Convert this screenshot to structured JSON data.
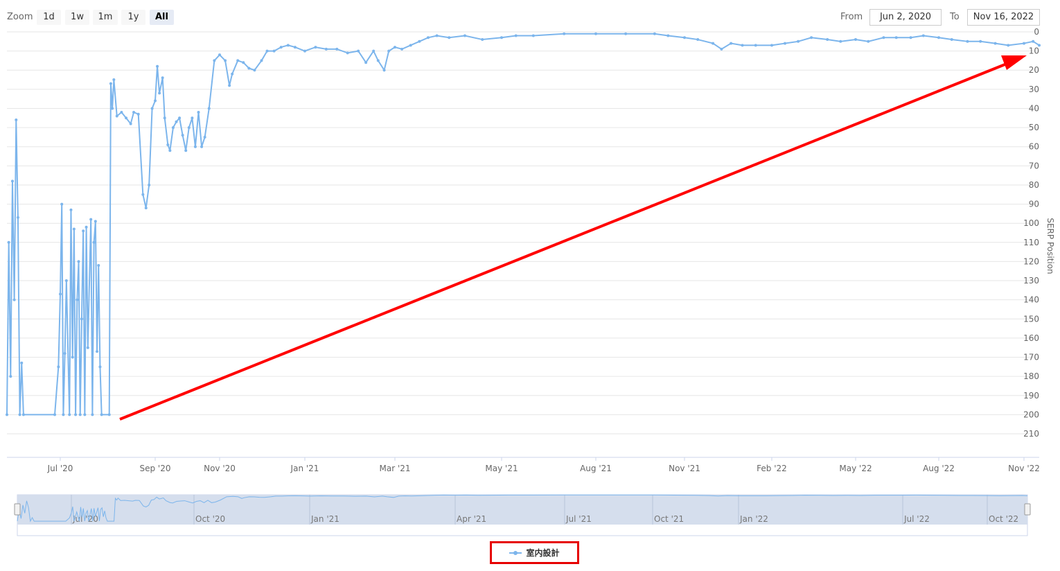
{
  "range_selector": {
    "zoom_label": "Zoom",
    "buttons": [
      {
        "label": "1d"
      },
      {
        "label": "1w"
      },
      {
        "label": "1m"
      },
      {
        "label": "1y"
      },
      {
        "label": "All",
        "active": true
      }
    ],
    "from_label": "From",
    "from_value": "Jun 2, 2020",
    "to_label": "To",
    "to_value": "Nov 16, 2022"
  },
  "colors": {
    "series": "#7cb5ec",
    "annotation": "#ff0000",
    "navigator_fill": "#d3dcec"
  },
  "chart_data": {
    "type": "line",
    "ylabel": "SERP Position",
    "y_reversed": true,
    "ylim": [
      0,
      210
    ],
    "yticks": [
      0,
      10,
      20,
      30,
      40,
      50,
      60,
      70,
      80,
      90,
      100,
      110,
      120,
      130,
      140,
      150,
      160,
      170,
      180,
      190,
      200,
      210
    ],
    "xticks": [
      {
        "date": "2020-07-01",
        "label": "Jul '20"
      },
      {
        "date": "2020-09-01",
        "label": "Sep '20"
      },
      {
        "date": "2020-11-01",
        "label": "Nov '20"
      },
      {
        "date": "2021-01-01",
        "label": "Jan '21"
      },
      {
        "date": "2021-03-01",
        "label": "Mar '21"
      },
      {
        "date": "2021-05-01",
        "label": "May '21"
      },
      {
        "date": "2021-08-01",
        "label": "Aug '21"
      },
      {
        "date": "2021-11-01",
        "label": "Nov '21"
      },
      {
        "date": "2022-02-01",
        "label": "Feb '22"
      },
      {
        "date": "2022-05-01",
        "label": "May '22"
      },
      {
        "date": "2022-08-01",
        "label": "Aug '22"
      },
      {
        "date": "2022-11-01",
        "label": "Nov '22"
      }
    ],
    "navigator_ticks": [
      {
        "date": "2020-07-01",
        "label": "Jul '20"
      },
      {
        "date": "2020-10-01",
        "label": "Oct '20"
      },
      {
        "date": "2021-01-01",
        "label": "Jan '21"
      },
      {
        "date": "2021-04-01",
        "label": "Apr '21"
      },
      {
        "date": "2021-07-01",
        "label": "Jul '21"
      },
      {
        "date": "2021-10-01",
        "label": "Oct '21"
      },
      {
        "date": "2022-01-01",
        "label": "Jan '22"
      },
      {
        "date": "2022-07-01",
        "label": "Jul '22"
      },
      {
        "date": "2022-10-01",
        "label": "Oct '22"
      }
    ],
    "grid": true,
    "legend_position": "bottom-center",
    "series": [
      {
        "name": "室内設計",
        "points": [
          [
            "2020-06-02",
            200
          ],
          [
            "2020-06-03",
            110
          ],
          [
            "2020-06-04",
            180
          ],
          [
            "2020-06-05",
            78
          ],
          [
            "2020-06-06",
            140
          ],
          [
            "2020-06-07",
            46
          ],
          [
            "2020-06-08",
            97
          ],
          [
            "2020-06-09",
            200
          ],
          [
            "2020-06-10",
            173
          ],
          [
            "2020-06-11",
            200
          ],
          [
            "2020-06-28",
            200
          ],
          [
            "2020-06-30",
            175
          ],
          [
            "2020-07-01",
            137
          ],
          [
            "2020-07-02",
            90
          ],
          [
            "2020-07-03",
            200
          ],
          [
            "2020-07-04",
            168
          ],
          [
            "2020-07-05",
            130
          ],
          [
            "2020-07-07",
            200
          ],
          [
            "2020-07-08",
            93
          ],
          [
            "2020-07-09",
            170
          ],
          [
            "2020-07-10",
            103
          ],
          [
            "2020-07-11",
            200
          ],
          [
            "2020-07-12",
            140
          ],
          [
            "2020-07-13",
            120
          ],
          [
            "2020-07-14",
            200
          ],
          [
            "2020-07-15",
            150
          ],
          [
            "2020-07-16",
            104
          ],
          [
            "2020-07-17",
            200
          ],
          [
            "2020-07-18",
            102
          ],
          [
            "2020-07-19",
            165
          ],
          [
            "2020-07-21",
            98
          ],
          [
            "2020-07-22",
            200
          ],
          [
            "2020-07-23",
            110
          ],
          [
            "2020-07-24",
            99
          ],
          [
            "2020-07-25",
            167
          ],
          [
            "2020-07-26",
            122
          ],
          [
            "2020-07-27",
            175
          ],
          [
            "2020-07-28",
            200
          ],
          [
            "2020-08-02",
            200
          ],
          [
            "2020-08-03",
            27
          ],
          [
            "2020-08-04",
            40
          ],
          [
            "2020-08-05",
            25
          ],
          [
            "2020-08-07",
            44
          ],
          [
            "2020-08-10",
            42
          ],
          [
            "2020-08-13",
            45
          ],
          [
            "2020-08-16",
            48
          ],
          [
            "2020-08-18",
            42
          ],
          [
            "2020-08-21",
            43
          ],
          [
            "2020-08-24",
            85
          ],
          [
            "2020-08-26",
            92
          ],
          [
            "2020-08-28",
            80
          ],
          [
            "2020-08-30",
            40
          ],
          [
            "2020-09-01",
            36
          ],
          [
            "2020-09-03",
            18
          ],
          [
            "2020-09-05",
            32
          ],
          [
            "2020-09-08",
            24
          ],
          [
            "2020-09-10",
            45
          ],
          [
            "2020-09-13",
            59
          ],
          [
            "2020-09-15",
            62
          ],
          [
            "2020-09-18",
            50
          ],
          [
            "2020-09-21",
            47
          ],
          [
            "2020-09-24",
            45
          ],
          [
            "2020-09-27",
            54
          ],
          [
            "2020-09-30",
            62
          ],
          [
            "2020-10-03",
            50
          ],
          [
            "2020-10-06",
            45
          ],
          [
            "2020-10-09",
            60
          ],
          [
            "2020-10-12",
            42
          ],
          [
            "2020-10-15",
            60
          ],
          [
            "2020-10-18",
            55
          ],
          [
            "2020-10-22",
            40
          ],
          [
            "2020-10-27",
            15
          ],
          [
            "2020-11-01",
            12
          ],
          [
            "2020-11-05",
            15
          ],
          [
            "2020-11-08",
            28
          ],
          [
            "2020-11-10",
            22
          ],
          [
            "2020-11-14",
            15
          ],
          [
            "2020-11-18",
            16
          ],
          [
            "2020-11-22",
            19
          ],
          [
            "2020-11-26",
            20
          ],
          [
            "2020-12-01",
            15
          ],
          [
            "2020-12-05",
            10
          ],
          [
            "2020-12-10",
            10
          ],
          [
            "2020-12-15",
            8
          ],
          [
            "2020-12-20",
            7
          ],
          [
            "2020-12-25",
            8
          ],
          [
            "2021-01-01",
            10
          ],
          [
            "2021-01-08",
            8
          ],
          [
            "2021-01-15",
            9
          ],
          [
            "2021-01-22",
            9
          ],
          [
            "2021-01-29",
            11
          ],
          [
            "2021-02-05",
            10
          ],
          [
            "2021-02-10",
            16
          ],
          [
            "2021-02-15",
            10
          ],
          [
            "2021-02-18",
            15
          ],
          [
            "2021-02-22",
            20
          ],
          [
            "2021-02-25",
            10
          ],
          [
            "2021-03-01",
            8
          ],
          [
            "2021-03-05",
            9
          ],
          [
            "2021-03-10",
            7
          ],
          [
            "2021-03-15",
            5
          ],
          [
            "2021-03-20",
            3
          ],
          [
            "2021-03-25",
            2
          ],
          [
            "2021-04-01",
            3
          ],
          [
            "2021-04-10",
            2
          ],
          [
            "2021-04-20",
            4
          ],
          [
            "2021-05-01",
            3
          ],
          [
            "2021-05-15",
            2
          ],
          [
            "2021-06-01",
            2
          ],
          [
            "2021-07-01",
            1
          ],
          [
            "2021-08-01",
            1
          ],
          [
            "2021-09-01",
            1
          ],
          [
            "2021-10-01",
            1
          ],
          [
            "2021-10-15",
            2
          ],
          [
            "2021-11-01",
            3
          ],
          [
            "2021-11-15",
            4
          ],
          [
            "2021-12-01",
            6
          ],
          [
            "2021-12-10",
            9
          ],
          [
            "2021-12-20",
            6
          ],
          [
            "2022-01-01",
            7
          ],
          [
            "2022-01-15",
            7
          ],
          [
            "2022-02-01",
            7
          ],
          [
            "2022-02-15",
            6
          ],
          [
            "2022-03-01",
            5
          ],
          [
            "2022-03-15",
            3
          ],
          [
            "2022-04-01",
            4
          ],
          [
            "2022-04-15",
            5
          ],
          [
            "2022-05-01",
            4
          ],
          [
            "2022-05-15",
            5
          ],
          [
            "2022-06-01",
            3
          ],
          [
            "2022-06-15",
            3
          ],
          [
            "2022-07-01",
            3
          ],
          [
            "2022-07-15",
            2
          ],
          [
            "2022-08-01",
            3
          ],
          [
            "2022-08-15",
            4
          ],
          [
            "2022-09-01",
            5
          ],
          [
            "2022-09-15",
            5
          ],
          [
            "2022-10-01",
            6
          ],
          [
            "2022-10-15",
            7
          ],
          [
            "2022-11-01",
            6
          ],
          [
            "2022-11-10",
            5
          ],
          [
            "2022-11-16",
            7
          ]
        ]
      }
    ]
  }
}
